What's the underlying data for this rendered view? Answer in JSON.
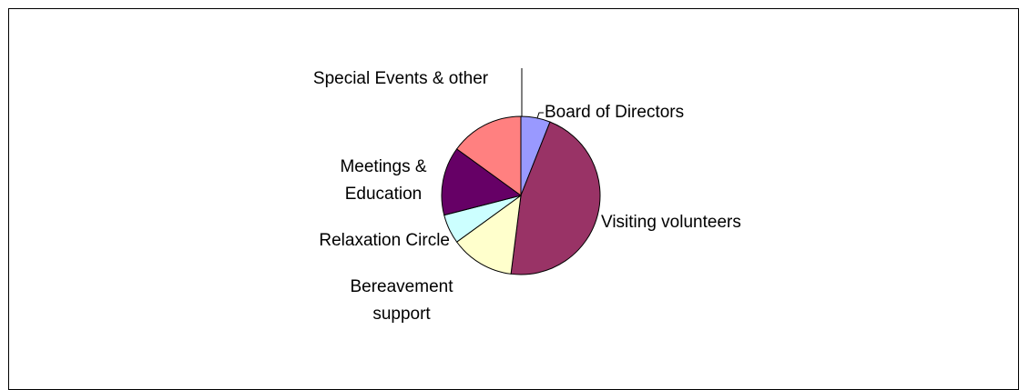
{
  "chart_data": {
    "type": "pie",
    "categories": [
      "Board of Directors",
      "Visiting volunteers",
      "Bereavement support",
      "Relaxation Circle",
      "Meetings & Education",
      "Special Events & other"
    ],
    "values": [
      6,
      46,
      13,
      6,
      14,
      15
    ],
    "colors": [
      "#9999ff",
      "#993366",
      "#ffffcc",
      "#ccffff",
      "#660066",
      "#ff8080"
    ]
  }
}
